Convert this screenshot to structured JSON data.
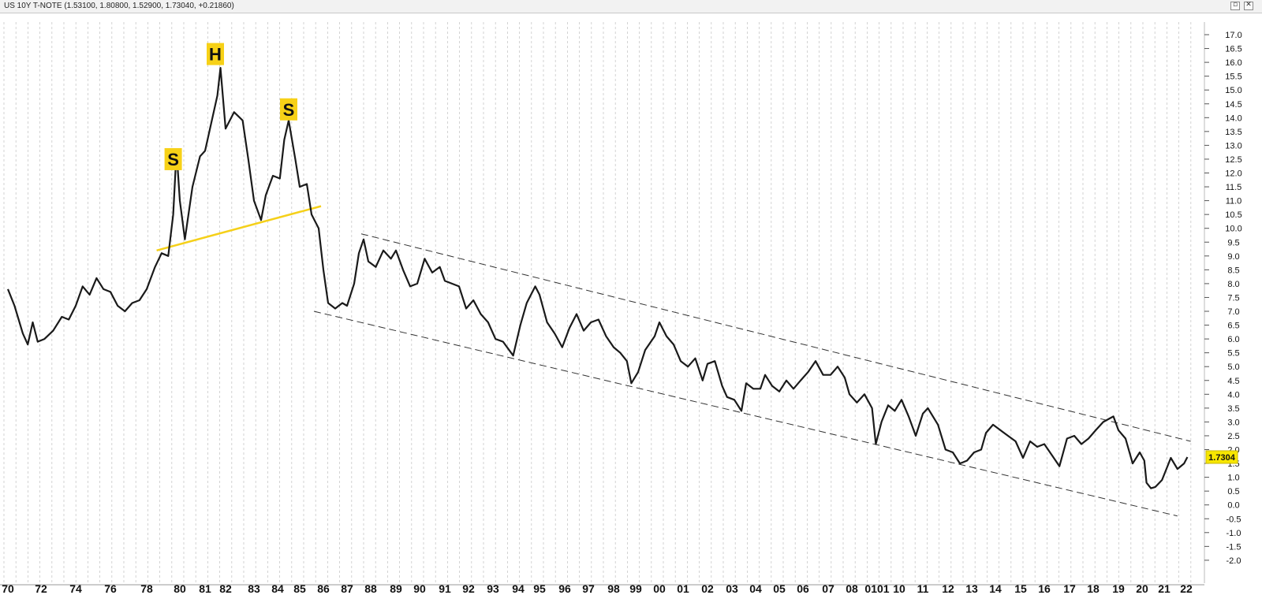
{
  "window": {
    "title": "US 10Y T-NOTE (1.53100, 1.80800, 1.52900, 1.73040, +0.21860)",
    "restore_icon": "restore-window-icon",
    "close_icon": "close-window-icon",
    "restore_glyph": "▫",
    "close_glyph": "✕"
  },
  "chart_data": {
    "type": "line",
    "series": [
      {
        "values": [
          [
            1970.0,
            7.8
          ],
          [
            1970.4,
            7.2
          ],
          [
            1970.9,
            6.2
          ],
          [
            1971.2,
            5.8
          ],
          [
            1971.5,
            6.6
          ],
          [
            1971.8,
            5.9
          ],
          [
            1972.2,
            6.0
          ],
          [
            1972.7,
            6.3
          ],
          [
            1973.2,
            6.8
          ],
          [
            1973.6,
            6.7
          ],
          [
            1974.0,
            7.2
          ],
          [
            1974.4,
            7.9
          ],
          [
            1974.8,
            7.6
          ],
          [
            1975.2,
            8.2
          ],
          [
            1975.6,
            7.8
          ],
          [
            1976.0,
            7.7
          ],
          [
            1976.4,
            7.2
          ],
          [
            1976.8,
            7.0
          ],
          [
            1977.2,
            7.3
          ],
          [
            1977.6,
            7.4
          ],
          [
            1978.0,
            7.8
          ],
          [
            1978.5,
            8.6
          ],
          [
            1978.9,
            9.1
          ],
          [
            1979.3,
            9.0
          ],
          [
            1979.6,
            10.5
          ],
          [
            1979.8,
            12.8
          ],
          [
            1980.0,
            11.0
          ],
          [
            1980.2,
            9.6
          ],
          [
            1980.5,
            11.5
          ],
          [
            1980.8,
            12.6
          ],
          [
            1981.0,
            12.8
          ],
          [
            1981.3,
            13.8
          ],
          [
            1981.6,
            14.8
          ],
          [
            1981.75,
            15.8
          ],
          [
            1982.0,
            13.6
          ],
          [
            1982.3,
            14.2
          ],
          [
            1982.6,
            13.9
          ],
          [
            1982.8,
            12.5
          ],
          [
            1983.0,
            11.0
          ],
          [
            1983.3,
            10.3
          ],
          [
            1983.5,
            11.2
          ],
          [
            1983.8,
            11.9
          ],
          [
            1984.1,
            11.8
          ],
          [
            1984.3,
            13.2
          ],
          [
            1984.5,
            13.9
          ],
          [
            1984.8,
            12.5
          ],
          [
            1985.0,
            11.5
          ],
          [
            1985.3,
            11.6
          ],
          [
            1985.5,
            10.5
          ],
          [
            1985.8,
            10.0
          ],
          [
            1986.0,
            8.5
          ],
          [
            1986.2,
            7.3
          ],
          [
            1986.5,
            7.1
          ],
          [
            1986.8,
            7.3
          ],
          [
            1987.0,
            7.2
          ],
          [
            1987.3,
            8.0
          ],
          [
            1987.5,
            9.1
          ],
          [
            1987.7,
            9.6
          ],
          [
            1987.9,
            8.8
          ],
          [
            1988.2,
            8.6
          ],
          [
            1988.5,
            9.2
          ],
          [
            1988.8,
            8.9
          ],
          [
            1989.0,
            9.2
          ],
          [
            1989.3,
            8.5
          ],
          [
            1989.6,
            7.9
          ],
          [
            1989.9,
            8.0
          ],
          [
            1990.2,
            8.9
          ],
          [
            1990.5,
            8.4
          ],
          [
            1990.8,
            8.6
          ],
          [
            1991.0,
            8.1
          ],
          [
            1991.3,
            8.0
          ],
          [
            1991.6,
            7.9
          ],
          [
            1991.9,
            7.1
          ],
          [
            1992.2,
            7.4
          ],
          [
            1992.5,
            6.9
          ],
          [
            1992.8,
            6.6
          ],
          [
            1993.1,
            6.0
          ],
          [
            1993.4,
            5.9
          ],
          [
            1993.8,
            5.4
          ],
          [
            1994.1,
            6.5
          ],
          [
            1994.4,
            7.3
          ],
          [
            1994.8,
            7.9
          ],
          [
            1995.0,
            7.6
          ],
          [
            1995.3,
            6.6
          ],
          [
            1995.6,
            6.2
          ],
          [
            1995.9,
            5.7
          ],
          [
            1996.2,
            6.4
          ],
          [
            1996.5,
            6.9
          ],
          [
            1996.8,
            6.3
          ],
          [
            1997.1,
            6.6
          ],
          [
            1997.4,
            6.7
          ],
          [
            1997.7,
            6.1
          ],
          [
            1998.0,
            5.7
          ],
          [
            1998.3,
            5.5
          ],
          [
            1998.6,
            5.2
          ],
          [
            1998.8,
            4.4
          ],
          [
            1999.1,
            4.8
          ],
          [
            1999.4,
            5.6
          ],
          [
            1999.8,
            6.1
          ],
          [
            2000.0,
            6.6
          ],
          [
            2000.3,
            6.1
          ],
          [
            2000.6,
            5.8
          ],
          [
            2000.9,
            5.2
          ],
          [
            2001.2,
            5.0
          ],
          [
            2001.5,
            5.3
          ],
          [
            2001.8,
            4.5
          ],
          [
            2002.0,
            5.1
          ],
          [
            2002.3,
            5.2
          ],
          [
            2002.6,
            4.3
          ],
          [
            2002.8,
            3.9
          ],
          [
            2003.1,
            3.8
          ],
          [
            2003.4,
            3.4
          ],
          [
            2003.6,
            4.4
          ],
          [
            2003.9,
            4.2
          ],
          [
            2004.2,
            4.2
          ],
          [
            2004.4,
            4.7
          ],
          [
            2004.7,
            4.3
          ],
          [
            2005.0,
            4.1
          ],
          [
            2005.3,
            4.5
          ],
          [
            2005.6,
            4.2
          ],
          [
            2005.9,
            4.5
          ],
          [
            2006.2,
            4.8
          ],
          [
            2006.5,
            5.2
          ],
          [
            2006.8,
            4.7
          ],
          [
            2007.1,
            4.7
          ],
          [
            2007.4,
            5.0
          ],
          [
            2007.7,
            4.6
          ],
          [
            2007.9,
            4.0
          ],
          [
            2008.2,
            3.7
          ],
          [
            2008.5,
            4.0
          ],
          [
            2008.8,
            3.5
          ],
          [
            2008.95,
            2.2
          ],
          [
            2009.2,
            3.0
          ],
          [
            2009.5,
            3.6
          ],
          [
            2009.8,
            3.4
          ],
          [
            2010.1,
            3.8
          ],
          [
            2010.4,
            3.2
          ],
          [
            2010.7,
            2.5
          ],
          [
            2011.0,
            3.3
          ],
          [
            2011.2,
            3.5
          ],
          [
            2011.6,
            2.9
          ],
          [
            2011.9,
            2.0
          ],
          [
            2012.2,
            1.9
          ],
          [
            2012.5,
            1.5
          ],
          [
            2012.8,
            1.6
          ],
          [
            2013.1,
            1.9
          ],
          [
            2013.4,
            2.0
          ],
          [
            2013.6,
            2.6
          ],
          [
            2013.9,
            2.9
          ],
          [
            2014.2,
            2.7
          ],
          [
            2014.5,
            2.5
          ],
          [
            2014.8,
            2.3
          ],
          [
            2015.1,
            1.7
          ],
          [
            2015.4,
            2.3
          ],
          [
            2015.7,
            2.1
          ],
          [
            2016.0,
            2.2
          ],
          [
            2016.3,
            1.8
          ],
          [
            2016.6,
            1.4
          ],
          [
            2016.9,
            2.4
          ],
          [
            2017.2,
            2.5
          ],
          [
            2017.5,
            2.2
          ],
          [
            2017.8,
            2.4
          ],
          [
            2018.1,
            2.7
          ],
          [
            2018.4,
            3.0
          ],
          [
            2018.8,
            3.2
          ],
          [
            2019.0,
            2.7
          ],
          [
            2019.3,
            2.4
          ],
          [
            2019.6,
            1.5
          ],
          [
            2019.9,
            1.9
          ],
          [
            2020.1,
            1.6
          ],
          [
            2020.2,
            0.8
          ],
          [
            2020.4,
            0.6
          ],
          [
            2020.6,
            0.65
          ],
          [
            2020.9,
            0.9
          ],
          [
            2021.1,
            1.3
          ],
          [
            2021.3,
            1.7
          ],
          [
            2021.6,
            1.3
          ],
          [
            2021.9,
            1.5
          ],
          [
            2022.05,
            1.73
          ]
        ]
      }
    ],
    "last_value": "1.7304",
    "x_ticks": [
      "70",
      "72",
      "74",
      "76",
      "78",
      "80",
      "81",
      "82",
      "83",
      "84",
      "85",
      "86",
      "87",
      "88",
      "89",
      "90",
      "91",
      "92",
      "93",
      "94",
      "95",
      "96",
      "97",
      "98",
      "99",
      "00",
      "01",
      "02",
      "03",
      "04",
      "05",
      "06",
      "07",
      "08",
      "0101",
      "10",
      "11",
      "12",
      "13",
      "14",
      "15",
      "16",
      "17",
      "18",
      "19",
      "20",
      "21",
      "22"
    ],
    "y_ticks": [
      "17.0",
      "16.5",
      "16.0",
      "15.5",
      "15.0",
      "14.5",
      "14.0",
      "13.5",
      "13.0",
      "12.5",
      "12.0",
      "11.5",
      "11.0",
      "10.5",
      "10.0",
      "9.5",
      "9.0",
      "8.5",
      "8.0",
      "7.5",
      "7.0",
      "6.5",
      "6.0",
      "5.5",
      "5.0",
      "4.5",
      "4.0",
      "3.5",
      "3.0",
      "2.5",
      "2.0",
      "1.5",
      "1.0",
      "0.5",
      "0.0",
      "-0.5",
      "-1.0",
      "-1.5",
      "-2.0"
    ],
    "ylim": [
      -2.0,
      17.0
    ],
    "grid": "vertical-dashed",
    "annotations": [
      {
        "label": "S",
        "x": 1979.6,
        "y": 12.5
      },
      {
        "label": "H",
        "x": 1981.5,
        "y": 16.3
      },
      {
        "label": "S",
        "x": 1984.5,
        "y": 14.3
      }
    ],
    "neckline": {
      "color": "#f5d019",
      "from": [
        1978.6,
        9.2
      ],
      "to": [
        1985.9,
        10.8
      ]
    },
    "channel": {
      "upper": {
        "from": [
          1987.6,
          9.8
        ],
        "to": [
          2022.2,
          2.3
        ]
      },
      "lower": {
        "from": [
          1985.6,
          7.0
        ],
        "to": [
          2021.6,
          -0.4
        ]
      }
    },
    "colors": {
      "line": "#1a1a1a",
      "grid": "#c8c8c8",
      "label_bg": "#f7d117",
      "last_value_bg": "#f7e600"
    }
  }
}
